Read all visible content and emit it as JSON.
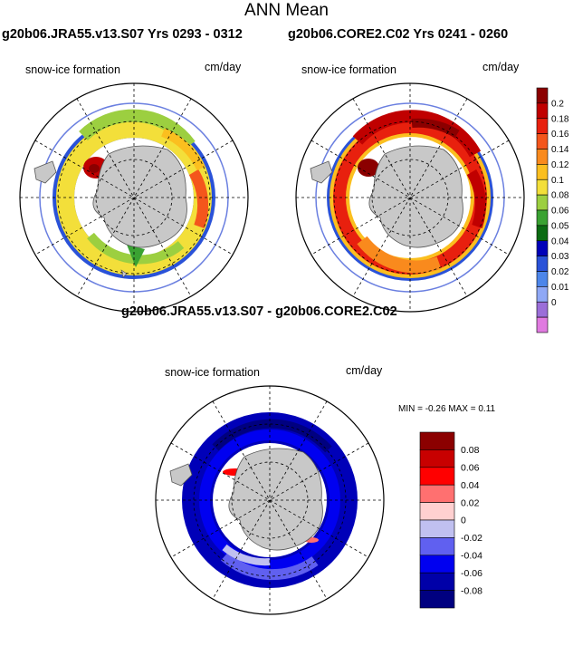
{
  "title": "ANN Mean",
  "panels": [
    {
      "title": "g20b06.JRA55.v13.S07  Yrs 0293 - 0312",
      "left_label": "snow-ice formation",
      "right_label": "cm/day"
    },
    {
      "title": "g20b06.CORE2.C02  Yrs 0241 - 0260",
      "left_label": "snow-ice formation",
      "right_label": "cm/day"
    },
    {
      "title": "g20b06.JRA55.v13.S07 - g20b06.CORE2.C02",
      "left_label": "snow-ice formation",
      "right_label": "cm/day",
      "stats": "MIN =  -0.26 MAX =   0.11"
    }
  ],
  "colorbar_main": {
    "labels": [
      "0.2",
      "0.18",
      "0.16",
      "0.14",
      "0.12",
      "0.1",
      "0.08",
      "0.06",
      "0.05",
      "0.04",
      "0.03",
      "0.02",
      "0.01",
      "0"
    ],
    "colors": [
      "#8b0000",
      "#c00000",
      "#e8200e",
      "#f4561c",
      "#f98a1d",
      "#fbbf1f",
      "#f3df3a",
      "#9ccf40",
      "#3aa232",
      "#0a6b12",
      "#0000b8",
      "#2a52d8",
      "#4d86ea",
      "#8fa8f6",
      "#9b6ed8",
      "#e07ae0"
    ]
  },
  "colorbar_diff": {
    "labels": [
      "0.08",
      "0.06",
      "0.04",
      "0.02",
      "0",
      "-0.02",
      "-0.04",
      "-0.06",
      "-0.08"
    ],
    "colors": [
      "#8b0000",
      "#c80000",
      "#ff0000",
      "#ff7070",
      "#ffd0d0",
      "#c0c0f0",
      "#6060f0",
      "#0000f0",
      "#0000a8",
      "#000080"
    ]
  }
}
